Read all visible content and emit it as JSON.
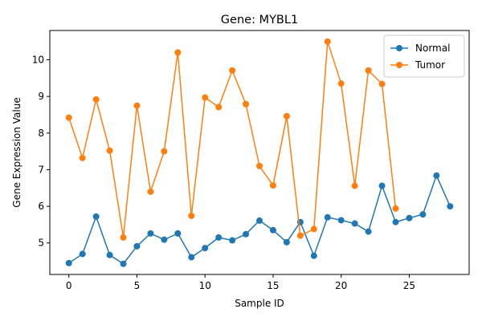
{
  "chart_data": {
    "type": "line",
    "title": "Gene: MYBL1",
    "xlabel": "Sample ID",
    "ylabel": "Gene Expression Value",
    "xlim": [
      -1.4,
      29.4
    ],
    "ylim": [
      4.14,
      10.8
    ],
    "xticks": [
      0,
      5,
      10,
      15,
      20,
      25
    ],
    "yticks": [
      5,
      6,
      7,
      8,
      9,
      10
    ],
    "grid": false,
    "legend_position": "top-right",
    "series": [
      {
        "name": "Normal",
        "color": "#1f77b4",
        "marker": "circle",
        "x": [
          0,
          1,
          2,
          3,
          4,
          5,
          6,
          7,
          8,
          9,
          10,
          11,
          12,
          13,
          14,
          15,
          16,
          17,
          18,
          19,
          20,
          21,
          22,
          23,
          24,
          25,
          26,
          27,
          28
        ],
        "values": [
          4.45,
          4.7,
          5.72,
          4.67,
          4.43,
          4.91,
          5.26,
          5.09,
          5.26,
          4.61,
          4.86,
          5.15,
          5.07,
          5.24,
          5.61,
          5.35,
          5.02,
          5.57,
          4.65,
          5.7,
          5.62,
          5.53,
          5.31,
          6.56,
          5.57,
          5.68,
          5.78,
          6.84,
          6.0
        ]
      },
      {
        "name": "Tumor",
        "color": "#ff7f0e",
        "marker": "circle",
        "x": [
          0,
          1,
          2,
          3,
          4,
          5,
          6,
          7,
          8,
          9,
          10,
          11,
          12,
          13,
          14,
          15,
          16,
          17,
          18,
          19,
          20,
          21,
          22,
          23,
          24
        ],
        "values": [
          8.42,
          7.32,
          8.92,
          7.52,
          5.15,
          8.75,
          6.4,
          7.5,
          10.2,
          5.74,
          8.97,
          8.71,
          9.71,
          8.79,
          7.1,
          6.57,
          8.46,
          5.2,
          5.38,
          10.5,
          9.35,
          6.56,
          9.71,
          9.34,
          5.94
        ]
      }
    ]
  }
}
